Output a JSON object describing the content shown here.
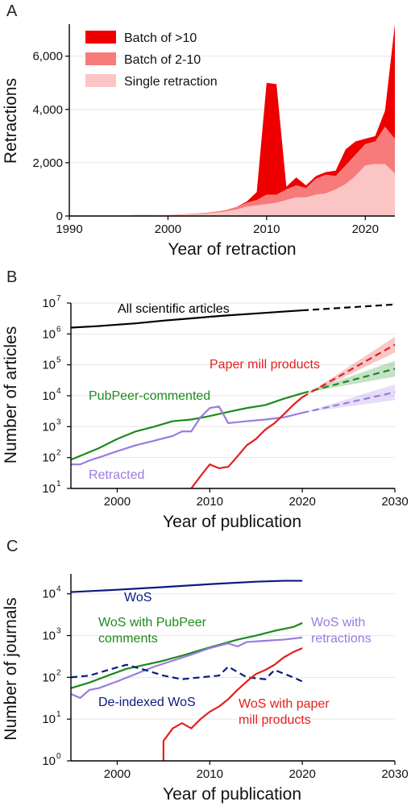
{
  "colors": {
    "batch_gt10": "#ee0000",
    "batch_2_10": "#f77b7b",
    "single": "#fbc5c5",
    "all_articles": "#000000",
    "pubpeer": "#1d8a1d",
    "retracted": "#9a7be0",
    "paper_mill": "#e61e1e",
    "wos": "#0a1a80"
  },
  "panels": {
    "A": {
      "label": "A",
      "xlabel": "Year of retraction",
      "ylabel": "Retractions",
      "xticks": [
        "1990",
        "2000",
        "2010",
        "2020"
      ],
      "yticks": [
        "0",
        "2,000",
        "4,000",
        "6,000"
      ],
      "legend": [
        "Batch of >10",
        "Batch of 2-10",
        "Single retraction"
      ]
    },
    "B": {
      "label": "B",
      "xlabel": "Year of publication",
      "ylabel": "Number of articles",
      "xticks": [
        "2000",
        "2010",
        "2020",
        "2030"
      ],
      "ytick_base": "10",
      "ytick_exps": [
        "1",
        "2",
        "3",
        "4",
        "5",
        "6",
        "7"
      ],
      "annotations": [
        "All scientific articles",
        "Paper mill products",
        "PubPeer-commented",
        "Retracted"
      ]
    },
    "C": {
      "label": "C",
      "xlabel": "Year of publication",
      "ylabel": "Number of journals",
      "xticks": [
        "2000",
        "2010",
        "2020",
        "2030"
      ],
      "ytick_base": "10",
      "ytick_exps": [
        "0",
        "1",
        "2",
        "3",
        "4"
      ],
      "annotations": [
        "WoS",
        "WoS with PubPeer",
        "comments",
        "WoS with",
        "retractions",
        "De-indexed WoS",
        "WoS with paper",
        "mill products"
      ]
    }
  },
  "chart_data": [
    {
      "type": "area",
      "stacked": true,
      "xlabel": "Year of retraction",
      "ylabel": "Retractions",
      "xlim": [
        1990,
        2023
      ],
      "ylim": [
        0,
        7200
      ],
      "grid": true,
      "legend_position": "top-left",
      "x": [
        1990,
        1991,
        1992,
        1993,
        1994,
        1995,
        1996,
        1997,
        1998,
        1999,
        2000,
        2001,
        2002,
        2003,
        2004,
        2005,
        2006,
        2007,
        2008,
        2009,
        2010,
        2011,
        2012,
        2013,
        2014,
        2015,
        2016,
        2017,
        2018,
        2019,
        2020,
        2021,
        2022,
        2023
      ],
      "series": [
        {
          "name": "Single retraction",
          "values": [
            20,
            20,
            25,
            25,
            25,
            30,
            30,
            35,
            40,
            40,
            40,
            45,
            60,
            80,
            100,
            130,
            180,
            250,
            350,
            400,
            450,
            500,
            600,
            700,
            700,
            800,
            850,
            1000,
            1200,
            1500,
            1900,
            1950,
            1950,
            1600
          ]
        },
        {
          "name": "Batch of 2-10",
          "values": [
            0,
            0,
            0,
            0,
            0,
            0,
            0,
            5,
            5,
            5,
            5,
            10,
            15,
            20,
            30,
            40,
            60,
            100,
            150,
            200,
            350,
            300,
            400,
            450,
            350,
            600,
            700,
            500,
            700,
            800,
            800,
            850,
            1400,
            1300
          ]
        },
        {
          "name": "Batch of >10",
          "values": [
            0,
            0,
            0,
            0,
            0,
            0,
            0,
            0,
            0,
            0,
            0,
            0,
            0,
            0,
            0,
            0,
            0,
            0,
            50,
            300,
            4200,
            4150,
            100,
            300,
            100,
            100,
            100,
            200,
            600,
            500,
            200,
            200,
            600,
            4300
          ]
        }
      ]
    },
    {
      "type": "line",
      "xlabel": "Year of publication",
      "ylabel": "Number of articles",
      "yscale": "log",
      "xlim": [
        1995,
        2030
      ],
      "ylim": [
        10,
        10000000
      ],
      "grid": true,
      "series": [
        {
          "name": "All scientific articles",
          "x": [
            1995,
            1998,
            2000,
            2002,
            2005,
            2008,
            2010,
            2012,
            2015,
            2018,
            2020
          ],
          "values": [
            1600000,
            1800000,
            2000000,
            2200000,
            2700000,
            3200000,
            3600000,
            4000000,
            4600000,
            5300000,
            5800000
          ],
          "projection": {
            "x": [
              2020,
              2030
            ],
            "values": [
              5800000,
              9000000
            ]
          }
        },
        {
          "name": "PubPeer-commented",
          "x": [
            1995,
            1997,
            1998,
            2000,
            2002,
            2004,
            2006,
            2008,
            2010,
            2012,
            2014,
            2016,
            2018,
            2020
          ],
          "values": [
            85,
            150,
            200,
            400,
            700,
            1000,
            1500,
            1700,
            2200,
            3000,
            4000,
            5000,
            8000,
            12000
          ],
          "projection": {
            "x": [
              2020,
              2030
            ],
            "values": [
              12000,
              75000
            ]
          }
        },
        {
          "name": "Retracted",
          "x": [
            1995,
            1996,
            1997,
            1998,
            2000,
            2002,
            2004,
            2006,
            2007,
            2008,
            2009,
            2010,
            2011,
            2012,
            2014,
            2016,
            2018,
            2020
          ],
          "values": [
            60,
            60,
            80,
            100,
            160,
            250,
            350,
            500,
            700,
            700,
            2000,
            4000,
            4500,
            1300,
            1500,
            1700,
            2000,
            2800
          ],
          "projection": {
            "x": [
              2020,
              2030
            ],
            "values": [
              2800,
              13000
            ]
          }
        },
        {
          "name": "Paper mill products",
          "x": [
            2008,
            2009,
            2010,
            2011,
            2012,
            2013,
            2014,
            2015,
            2016,
            2017,
            2018,
            2019,
            2020
          ],
          "values": [
            10,
            25,
            60,
            45,
            50,
            110,
            250,
            400,
            800,
            1300,
            2500,
            5000,
            9000
          ],
          "projection": {
            "x": [
              2020,
              2030
            ],
            "values": [
              9000,
              450000
            ]
          }
        }
      ]
    },
    {
      "type": "line",
      "xlabel": "Year of publication",
      "ylabel": "Number of journals",
      "yscale": "log",
      "xlim": [
        1995,
        2030
      ],
      "ylim": [
        1,
        30000
      ],
      "grid": true,
      "series": [
        {
          "name": "WoS",
          "x": [
            1995,
            2000,
            2005,
            2010,
            2015,
            2018,
            2020
          ],
          "values": [
            11000,
            12500,
            14500,
            17000,
            19500,
            20500,
            20500
          ]
        },
        {
          "name": "WoS with PubPeer comments",
          "x": [
            1995,
            1997,
            1999,
            2001,
            2003,
            2005,
            2007,
            2009,
            2011,
            2013,
            2015,
            2017,
            2019,
            2020
          ],
          "values": [
            55,
            75,
            110,
            160,
            200,
            250,
            330,
            450,
            600,
            800,
            1000,
            1300,
            1600,
            2000
          ]
        },
        {
          "name": "WoS with retractions",
          "x": [
            1995,
            1996,
            1997,
            1998,
            2000,
            2002,
            2004,
            2006,
            2008,
            2010,
            2012,
            2013,
            2014,
            2016,
            2018,
            2020
          ],
          "values": [
            40,
            32,
            50,
            55,
            80,
            120,
            180,
            250,
            350,
            500,
            650,
            550,
            700,
            750,
            800,
            900
          ]
        },
        {
          "name": "De-indexed WoS",
          "style": "dashed",
          "x": [
            1995,
            1997,
            1999,
            2001,
            2003,
            2005,
            2007,
            2009,
            2011,
            2012,
            2014,
            2016,
            2017,
            2019,
            2020
          ],
          "values": [
            100,
            110,
            150,
            200,
            150,
            110,
            90,
            100,
            110,
            180,
            100,
            90,
            150,
            100,
            80
          ]
        },
        {
          "name": "WoS with paper mill products",
          "x": [
            2005,
            2005,
            2006,
            2007,
            2008,
            2009,
            2010,
            2011,
            2012,
            2013,
            2014,
            2015,
            2016,
            2017,
            2018,
            2019,
            2020
          ],
          "values": [
            1,
            3,
            6,
            8,
            6,
            10,
            15,
            20,
            30,
            50,
            80,
            120,
            150,
            200,
            300,
            400,
            500
          ]
        }
      ]
    }
  ]
}
